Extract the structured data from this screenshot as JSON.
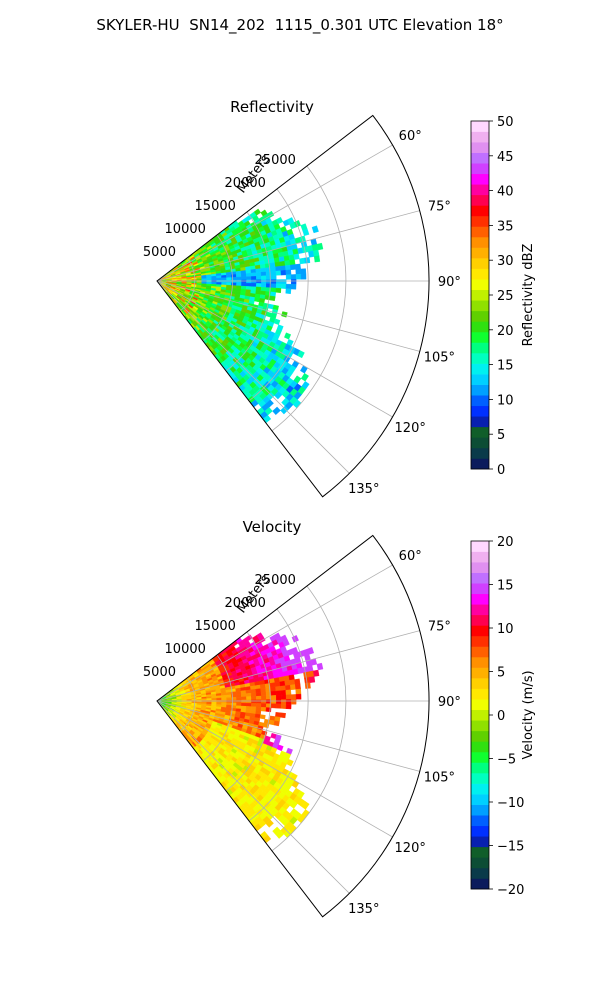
{
  "title": "SKYLER-HU  SN14_202  1115_0.301 UTC Elevation 18°",
  "chart_data": [
    {
      "type": "heatmap",
      "title": "Reflectivity",
      "radial_label": "Meters",
      "range_ticks": [
        {
          "value": 5000,
          "label": "5000"
        },
        {
          "value": 10000,
          "label": "10000"
        },
        {
          "value": 15000,
          "label": "15000"
        },
        {
          "value": 20000,
          "label": "20000"
        },
        {
          "value": 25000,
          "label": "25000"
        }
      ],
      "range_max": 36000,
      "azimuth_range": [
        52.5,
        142.5
      ],
      "azimuth_ticks": [
        {
          "value": 60,
          "label": "60°"
        },
        {
          "value": 75,
          "label": "75°"
        },
        {
          "value": 90,
          "label": "90°"
        },
        {
          "value": 105,
          "label": "105°"
        },
        {
          "value": 120,
          "label": "120°"
        },
        {
          "value": 135,
          "label": "135°"
        }
      ],
      "grid": true,
      "colorbar": {
        "label": "Reflectivity dBZ",
        "min": 0,
        "max": 50,
        "ticks": [
          {
            "value": 0,
            "label": "0"
          },
          {
            "value": 5,
            "label": "5"
          },
          {
            "value": 10,
            "label": "10"
          },
          {
            "value": 15,
            "label": "15"
          },
          {
            "value": 20,
            "label": "20"
          },
          {
            "value": 25,
            "label": "25"
          },
          {
            "value": 30,
            "label": "30"
          },
          {
            "value": 35,
            "label": "35"
          },
          {
            "value": 40,
            "label": "40"
          },
          {
            "value": 45,
            "label": "45"
          },
          {
            "value": 50,
            "label": "50"
          }
        ],
        "colors": [
          "#0b1b5c",
          "#0a3a4a",
          "#0c4d35",
          "#105e2a",
          "#0820b0",
          "#0030ff",
          "#0060ff",
          "#00a0ff",
          "#00d0ff",
          "#00f0f0",
          "#00ffc0",
          "#00ff80",
          "#10ff30",
          "#30e010",
          "#60d000",
          "#90e000",
          "#c0f000",
          "#f0ff00",
          "#ffe800",
          "#ffd000",
          "#ffb000",
          "#ff9000",
          "#ff6000",
          "#ff3000",
          "#ff0000",
          "#ff0050",
          "#ff00a0",
          "#ff00ff",
          "#d040ff",
          "#c070ff",
          "#e090f0",
          "#f0b0f0",
          "#ffd8ff"
        ]
      },
      "field": {
        "range_extent": [
          0,
          25000
        ],
        "azimuth_extent": [
          52.5,
          142.5
        ],
        "typical_value": 15,
        "near_range_value": 25,
        "max_value": 35
      }
    },
    {
      "type": "heatmap",
      "title": "Velocity",
      "radial_label": "Meters",
      "range_ticks": [
        {
          "value": 5000,
          "label": "5000"
        },
        {
          "value": 10000,
          "label": "10000"
        },
        {
          "value": 15000,
          "label": "15000"
        },
        {
          "value": 20000,
          "label": "20000"
        },
        {
          "value": 25000,
          "label": "25000"
        }
      ],
      "range_max": 36000,
      "azimuth_range": [
        52.5,
        142.5
      ],
      "azimuth_ticks": [
        {
          "value": 60,
          "label": "60°"
        },
        {
          "value": 75,
          "label": "75°"
        },
        {
          "value": 90,
          "label": "90°"
        },
        {
          "value": 105,
          "label": "105°"
        },
        {
          "value": 120,
          "label": "120°"
        },
        {
          "value": 135,
          "label": "135°"
        }
      ],
      "grid": true,
      "colorbar": {
        "label": "Velocity (m/s)",
        "min": -20,
        "max": 20,
        "ticks": [
          {
            "value": -20,
            "label": "−20"
          },
          {
            "value": -15,
            "label": "−15"
          },
          {
            "value": -10,
            "label": "−10"
          },
          {
            "value": -5,
            "label": "−5"
          },
          {
            "value": 0,
            "label": "0"
          },
          {
            "value": 5,
            "label": "5"
          },
          {
            "value": 10,
            "label": "10"
          },
          {
            "value": 15,
            "label": "15"
          },
          {
            "value": 20,
            "label": "20"
          }
        ],
        "colors": [
          "#0b1b5c",
          "#0a3a4a",
          "#0c4d35",
          "#105e2a",
          "#0820b0",
          "#0030ff",
          "#0060ff",
          "#00a0ff",
          "#00d0ff",
          "#00f0f0",
          "#00ffc0",
          "#00ff80",
          "#10ff30",
          "#30e010",
          "#60d000",
          "#90e000",
          "#c0f000",
          "#f0ff00",
          "#ffe800",
          "#ffd000",
          "#ffb000",
          "#ff9000",
          "#ff6000",
          "#ff3000",
          "#ff0000",
          "#ff0050",
          "#ff00a0",
          "#ff00ff",
          "#d040ff",
          "#c070ff",
          "#e090f0",
          "#f0b0f0",
          "#ffd8ff"
        ]
      },
      "field": {
        "range_extent": [
          0,
          25000
        ],
        "azimuth_extent": [
          52.5,
          142.5
        ],
        "near_range_value": -8,
        "typical_value": 3,
        "max_value": 15
      }
    }
  ]
}
